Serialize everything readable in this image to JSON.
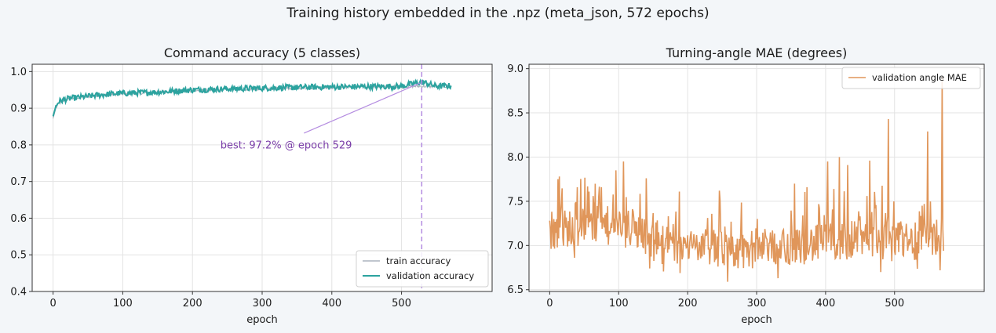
{
  "figure": {
    "suptitle": "Training history embedded in the .npz (meta_json, 572 epochs)",
    "background": "#f3f6f9"
  },
  "chart_data": [
    {
      "type": "line",
      "title": "Command accuracy (5 classes)",
      "xlabel": "epoch",
      "ylabel": "",
      "xlim": [
        -30,
        630
      ],
      "ylim": [
        0.4,
        1.02
      ],
      "xticks": [
        0,
        100,
        200,
        300,
        400,
        500
      ],
      "xtick_labels": [
        "0",
        "100",
        "200",
        "300",
        "400",
        "500"
      ],
      "yticks": [
        0.4,
        0.5,
        0.6,
        0.7,
        0.8,
        0.9,
        1.0
      ],
      "ytick_labels": [
        "0.4",
        "0.5",
        "0.6",
        "0.7",
        "0.8",
        "0.9",
        "1.0"
      ],
      "grid": true,
      "legend_position": "lower-right",
      "series": [
        {
          "name": "train accuracy",
          "color": "#9aa5b1",
          "profile": {
            "x": [
              0,
              4,
              8,
              15,
              25,
              40,
              60,
              90,
              120,
              150,
              200,
              250,
              300,
              350,
              400,
              450,
              500,
              529,
              550,
              571
            ],
            "y": [
              0.872,
              0.9,
              0.912,
              0.92,
              0.926,
              0.93,
              0.934,
              0.938,
              0.941,
              0.944,
              0.948,
              0.951,
              0.953,
              0.955,
              0.957,
              0.958,
              0.959,
              0.96,
              0.959,
              0.96
            ]
          }
        },
        {
          "name": "validation accuracy",
          "color": "#2ca39f",
          "profile": {
            "x": [
              0,
              4,
              8,
              15,
              25,
              40,
              60,
              90,
              120,
              150,
              200,
              250,
              300,
              350,
              400,
              450,
              500,
              529,
              550,
              571
            ],
            "y": [
              0.878,
              0.905,
              0.918,
              0.923,
              0.927,
              0.93,
              0.935,
              0.94,
              0.942,
              0.944,
              0.95,
              0.953,
              0.955,
              0.957,
              0.958,
              0.959,
              0.96,
              0.972,
              0.96,
              0.961
            ]
          }
        }
      ],
      "annotation": {
        "text": "best: 97.2% @ epoch 529",
        "point": [
          529,
          0.972
        ],
        "text_at": [
          240,
          0.8
        ],
        "color": "#7a3ea8",
        "vline_x": 529,
        "vline_color": "#b48ce0"
      }
    },
    {
      "type": "line",
      "title": "Turning-angle MAE (degrees)",
      "xlabel": "epoch",
      "ylabel": "",
      "xlim": [
        -30,
        630
      ],
      "ylim": [
        6.48,
        9.05
      ],
      "xticks": [
        0,
        100,
        200,
        300,
        400,
        500
      ],
      "xtick_labels": [
        "0",
        "100",
        "200",
        "300",
        "400",
        "500"
      ],
      "yticks": [
        6.5,
        7.0,
        7.5,
        8.0,
        8.5,
        9.0
      ],
      "ytick_labels": [
        "6.5",
        "7.0",
        "7.5",
        "8.0",
        "8.5",
        "9.0"
      ],
      "grid": true,
      "legend_position": "upper-right",
      "series": [
        {
          "name": "validation angle MAE",
          "color": "#e0965a",
          "baseline": {
            "x": [
              0,
              50,
              100,
              140,
              150,
              200,
              260,
              300,
              350,
              400,
              450,
              500,
              550,
              571
            ],
            "y": [
              7.15,
              7.2,
              7.2,
              7.1,
              7.0,
              6.97,
              6.92,
              6.95,
              6.98,
              7.0,
              7.05,
              7.02,
              7.05,
              7.1
            ]
          },
          "spikes": [
            {
              "x": 0,
              "y": 7.28
            },
            {
              "x": 12,
              "y": 7.75
            },
            {
              "x": 14,
              "y": 7.78
            },
            {
              "x": 40,
              "y": 7.66
            },
            {
              "x": 63,
              "y": 7.56
            },
            {
              "x": 75,
              "y": 7.66
            },
            {
              "x": 96,
              "y": 7.85
            },
            {
              "x": 107,
              "y": 7.95
            },
            {
              "x": 140,
              "y": 7.76
            },
            {
              "x": 188,
              "y": 7.61
            },
            {
              "x": 246,
              "y": 7.62
            },
            {
              "x": 355,
              "y": 7.7
            },
            {
              "x": 373,
              "y": 7.66
            },
            {
              "x": 403,
              "y": 7.95
            },
            {
              "x": 412,
              "y": 7.64
            },
            {
              "x": 420,
              "y": 8.0
            },
            {
              "x": 432,
              "y": 7.91
            },
            {
              "x": 464,
              "y": 7.96
            },
            {
              "x": 491,
              "y": 8.43
            },
            {
              "x": 548,
              "y": 8.29
            },
            {
              "x": 569,
              "y": 8.91
            }
          ],
          "dips": [
            {
              "x": 145,
              "y": 6.74
            },
            {
              "x": 258,
              "y": 6.59
            },
            {
              "x": 331,
              "y": 6.63
            },
            {
              "x": 480,
              "y": 6.7
            },
            {
              "x": 566,
              "y": 6.72
            }
          ],
          "last": {
            "x": 571,
            "y": 6.94
          }
        }
      ]
    }
  ]
}
